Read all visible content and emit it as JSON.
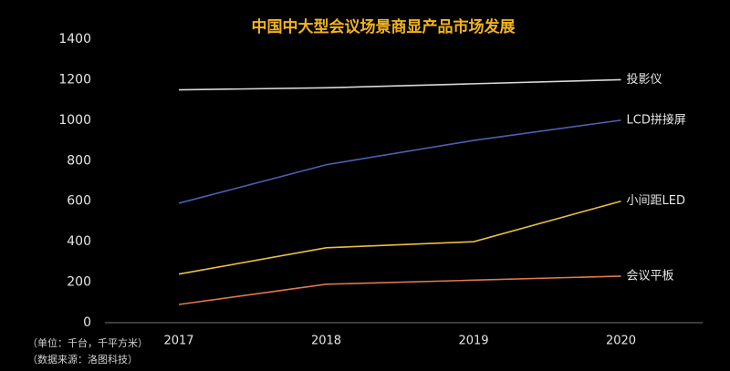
{
  "chart_data": {
    "type": "line",
    "title": "中国中大型会议场景商显产品市场发展",
    "categories": [
      "2017",
      "2018",
      "2019",
      "2020"
    ],
    "series": [
      {
        "name": "投影仪",
        "color": "#d9d9d9",
        "values": [
          1150,
          1160,
          1180,
          1200
        ]
      },
      {
        "name": "LCD拼接屏",
        "color": "#4a62b0",
        "values": [
          590,
          780,
          900,
          1000
        ]
      },
      {
        "name": "小间距LED",
        "color": "#e8c040",
        "values": [
          240,
          370,
          400,
          600
        ]
      },
      {
        "name": "会议平板",
        "color": "#e07850",
        "values": [
          90,
          190,
          210,
          230
        ]
      }
    ],
    "ylim": [
      0,
      1400
    ],
    "yticks": [
      0,
      200,
      400,
      600,
      800,
      1000,
      1200,
      1400
    ],
    "grid": false,
    "notes": [
      "（单位：千台，千平方米）",
      "（数据来源：洛图科技）"
    ]
  }
}
